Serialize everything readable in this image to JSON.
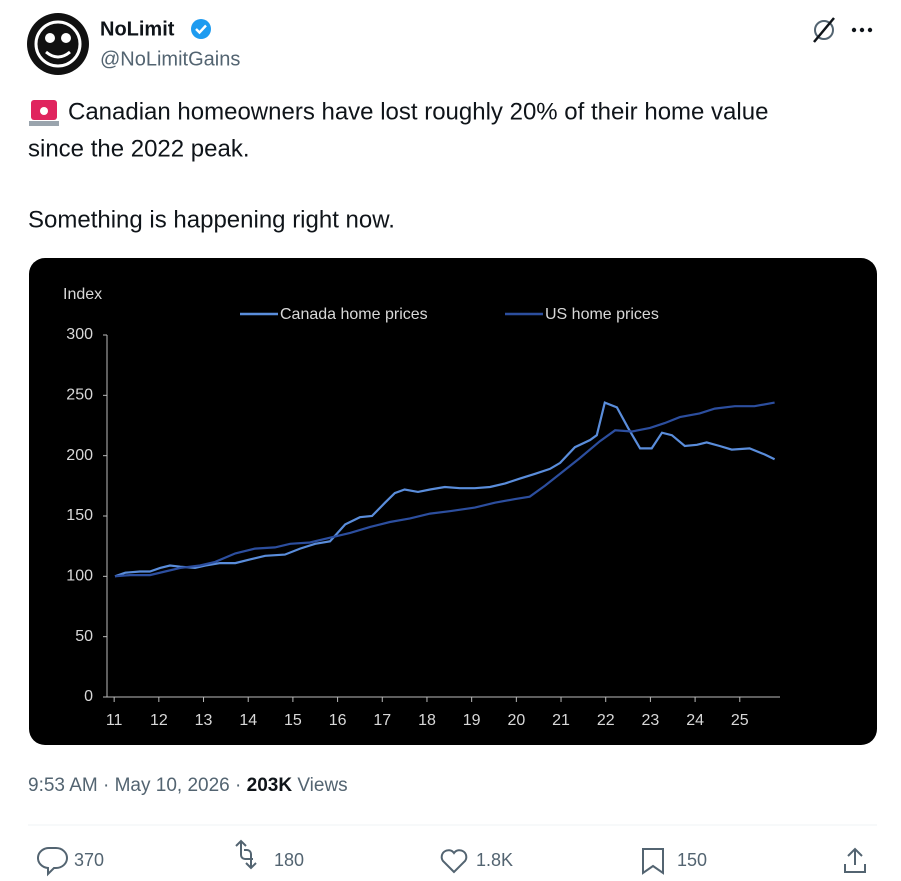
{
  "author": {
    "name": "NoLimit",
    "handle": "@NoLimitGains"
  },
  "post": {
    "lines": [
      "Canadian homeowners have lost roughly 20% of their home value",
      "since the 2022 peak.",
      "Something is happening right now."
    ]
  },
  "chart_data": {
    "type": "line",
    "ylabel": "Index",
    "xlim": [
      10.84,
      25.9
    ],
    "xticks": [
      11,
      12,
      13,
      14,
      15,
      16,
      17,
      18,
      19,
      20,
      21,
      22,
      23,
      24,
      25
    ],
    "ylim": [
      0,
      300
    ],
    "yticks": [
      0,
      50,
      100,
      150,
      200,
      250,
      300
    ],
    "grid": false,
    "legend": "top",
    "series": [
      {
        "name": "Canada home prices",
        "color": "#5a8ddb",
        "x": [
          11.02,
          11.25,
          11.58,
          11.8,
          12.03,
          12.25,
          12.48,
          12.81,
          13.04,
          13.37,
          13.71,
          14.04,
          14.38,
          14.82,
          15.16,
          15.5,
          15.83,
          16.17,
          16.5,
          16.77,
          17.06,
          17.28,
          17.5,
          17.8,
          18.07,
          18.4,
          18.74,
          19.07,
          19.41,
          19.75,
          20.08,
          20.42,
          20.75,
          20.98,
          21.31,
          21.65,
          21.8,
          21.98,
          22.25,
          22.5,
          22.77,
          23.03,
          23.26,
          23.48,
          23.77,
          24.04,
          24.26,
          24.55,
          24.82,
          25.22,
          25.56,
          25.78
        ],
        "values": [
          100,
          103,
          104,
          104,
          107,
          109,
          108,
          107,
          109,
          111,
          111,
          114,
          117,
          118,
          123,
          127,
          129,
          143,
          149,
          150,
          161,
          169,
          172,
          170,
          172,
          174,
          173,
          173,
          174,
          177,
          181,
          185,
          189,
          194,
          207,
          213,
          217,
          244,
          240,
          223,
          206,
          206,
          219,
          217,
          208,
          209,
          211,
          208,
          205,
          206,
          201,
          197
        ]
      },
      {
        "name": "US home prices",
        "color": "#2c4e9e",
        "x": [
          11.02,
          11.36,
          11.8,
          12.14,
          12.48,
          12.92,
          13.26,
          13.71,
          14.15,
          14.6,
          14.94,
          15.38,
          15.83,
          16.28,
          16.73,
          17.17,
          17.62,
          18.07,
          18.51,
          19.07,
          19.52,
          19.97,
          20.3,
          20.64,
          20.98,
          21.42,
          21.87,
          22.21,
          22.59,
          22.99,
          23.32,
          23.66,
          24.1,
          24.44,
          24.89,
          25.33,
          25.78
        ],
        "values": [
          100,
          101,
          101,
          104,
          107,
          109,
          112,
          119,
          123,
          124,
          127,
          128,
          132,
          136,
          141,
          145,
          148,
          152,
          154,
          157,
          161,
          164,
          166,
          175,
          185,
          198,
          212,
          221,
          220,
          223,
          227,
          232,
          235,
          239,
          241,
          241,
          244
        ]
      }
    ]
  },
  "meta": {
    "time": "9:53 AM",
    "separator": "·",
    "date": "May 10, 2026",
    "views": "203K",
    "views_label": "Views"
  },
  "actions": {
    "replies": "370",
    "reposts": "180",
    "likes": "1.8K",
    "bookmarks": "150"
  }
}
